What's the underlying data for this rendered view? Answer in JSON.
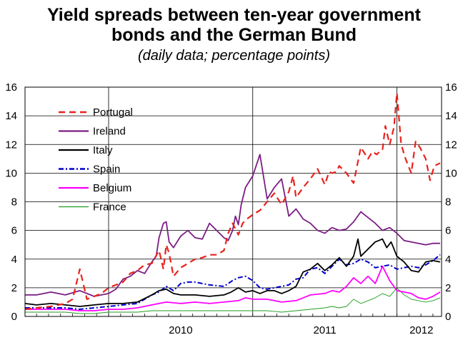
{
  "header": {
    "title_line1": "Yield spreads between ten-year government",
    "title_line2": "bonds and the German Bund",
    "subtitle": "(daily data; percentage points)"
  },
  "chart_data": {
    "type": "line",
    "title": "Yield spreads between ten-year government bonds and the German Bund",
    "subtitle": "(daily data; percentage points)",
    "xlabel": "",
    "ylabel": "",
    "x_ticks": [
      "2010",
      "2011",
      "2012"
    ],
    "xlim": [
      2009.42,
      2012.31
    ],
    "ylim": [
      0,
      16
    ],
    "y_ticks": [
      0,
      2,
      4,
      6,
      8,
      10,
      12,
      14,
      16
    ],
    "grid": "vertical lines at year boundaries 2010, 2011, 2012; horizontal lines at every 2 points",
    "legend_position": "top-left",
    "series": [
      {
        "name": "Portugal",
        "color": "#e8221c",
        "style": "dashed",
        "x": [
          2009.42,
          2009.5,
          2009.6,
          2009.7,
          2009.75,
          2009.8,
          2009.85,
          2009.9,
          2009.95,
          2010.0,
          2010.05,
          2010.1,
          2010.15,
          2010.2,
          2010.25,
          2010.3,
          2010.35,
          2010.38,
          2010.4,
          2010.42,
          2010.45,
          2010.5,
          2010.55,
          2010.6,
          2010.65,
          2010.7,
          2010.75,
          2010.8,
          2010.83,
          2010.86,
          2010.9,
          2010.93,
          2010.96,
          2011.0,
          2011.05,
          2011.1,
          2011.15,
          2011.2,
          2011.25,
          2011.28,
          2011.3,
          2011.35,
          2011.4,
          2011.45,
          2011.5,
          2011.53,
          2011.55,
          2011.58,
          2011.6,
          2011.65,
          2011.7,
          2011.75,
          2011.8,
          2011.83,
          2011.86,
          2011.88,
          2011.9,
          2011.92,
          2011.95,
          2011.98,
          2012.0,
          2012.03,
          2012.06,
          2012.1,
          2012.13,
          2012.16,
          2012.2,
          2012.23,
          2012.26,
          2012.3
        ],
        "y": [
          0.5,
          0.6,
          0.7,
          0.9,
          1.2,
          3.3,
          1.2,
          1.4,
          1.6,
          2.0,
          2.2,
          2.4,
          3.0,
          3.2,
          3.6,
          3.7,
          4.6,
          3.3,
          5.0,
          4.4,
          2.8,
          3.4,
          3.7,
          4.0,
          4.1,
          4.3,
          4.3,
          4.6,
          5.8,
          6.5,
          5.7,
          6.5,
          6.8,
          7.1,
          7.4,
          8.0,
          8.6,
          7.8,
          8.7,
          9.8,
          8.3,
          9.0,
          9.6,
          10.3,
          9.2,
          10.1,
          10.0,
          10.1,
          10.5,
          10.0,
          9.3,
          11.8,
          11.0,
          11.5,
          11.3,
          11.5,
          11.6,
          13.3,
          12.0,
          13.2,
          15.6,
          12.0,
          11.0,
          10.0,
          12.2,
          11.8,
          11.0,
          9.5,
          10.5,
          10.7
        ]
      },
      {
        "name": "Ireland",
        "color": "#7b1d84",
        "style": "solid",
        "x": [
          2009.42,
          2009.5,
          2009.6,
          2009.7,
          2009.8,
          2009.9,
          2010.0,
          2010.05,
          2010.1,
          2010.15,
          2010.2,
          2010.25,
          2010.3,
          2010.33,
          2010.35,
          2010.38,
          2010.4,
          2010.42,
          2010.45,
          2010.5,
          2010.55,
          2010.6,
          2010.65,
          2010.7,
          2010.75,
          2010.8,
          2010.83,
          2010.86,
          2010.88,
          2010.9,
          2010.92,
          2010.95,
          2011.0,
          2011.05,
          2011.1,
          2011.15,
          2011.2,
          2011.25,
          2011.3,
          2011.35,
          2011.4,
          2011.45,
          2011.5,
          2011.55,
          2011.6,
          2011.65,
          2011.7,
          2011.75,
          2011.8,
          2011.85,
          2011.9,
          2011.95,
          2012.0,
          2012.05,
          2012.1,
          2012.15,
          2012.2,
          2012.25,
          2012.3
        ],
        "y": [
          1.5,
          1.5,
          1.7,
          1.5,
          1.8,
          1.4,
          1.6,
          1.9,
          2.6,
          2.8,
          3.2,
          3.0,
          3.8,
          4.2,
          5.5,
          6.5,
          6.6,
          5.2,
          4.8,
          5.6,
          6.0,
          5.5,
          5.4,
          6.5,
          6.0,
          5.5,
          5.3,
          6.0,
          7.0,
          6.4,
          7.8,
          9.0,
          9.8,
          11.3,
          8.2,
          9.0,
          9.6,
          7.0,
          7.5,
          6.8,
          6.5,
          6.0,
          5.8,
          6.2,
          6.0,
          6.1,
          6.6,
          7.3,
          6.9,
          6.5,
          6.0,
          6.2,
          5.8,
          5.3,
          5.2,
          5.1,
          5.0,
          5.1,
          5.1
        ]
      },
      {
        "name": "Italy",
        "color": "#000000",
        "style": "solid",
        "x": [
          2009.42,
          2009.5,
          2009.6,
          2009.7,
          2009.8,
          2009.9,
          2010.0,
          2010.1,
          2010.2,
          2010.3,
          2010.35,
          2010.4,
          2010.45,
          2010.5,
          2010.6,
          2010.7,
          2010.8,
          2010.85,
          2010.9,
          2010.95,
          2011.0,
          2011.05,
          2011.1,
          2011.15,
          2011.2,
          2011.25,
          2011.3,
          2011.35,
          2011.4,
          2011.45,
          2011.5,
          2011.55,
          2011.6,
          2011.65,
          2011.7,
          2011.73,
          2011.75,
          2011.8,
          2011.85,
          2011.9,
          2011.93,
          2011.96,
          2012.0,
          2012.05,
          2012.1,
          2012.15,
          2012.2,
          2012.25,
          2012.3
        ],
        "y": [
          0.9,
          0.8,
          0.9,
          0.8,
          0.7,
          0.8,
          0.9,
          0.9,
          1.0,
          1.5,
          1.8,
          1.9,
          1.6,
          1.5,
          1.5,
          1.4,
          1.5,
          1.7,
          2.0,
          1.7,
          1.8,
          1.6,
          1.8,
          1.8,
          1.6,
          1.8,
          2.1,
          3.1,
          3.3,
          3.7,
          3.2,
          3.6,
          4.1,
          3.5,
          4.2,
          5.4,
          4.2,
          4.7,
          5.2,
          5.4,
          4.8,
          5.2,
          4.2,
          3.8,
          3.2,
          3.1,
          3.8,
          3.9,
          3.8
        ]
      },
      {
        "name": "Spain",
        "color": "#0000cc",
        "style": "dash-dot",
        "x": [
          2009.42,
          2009.5,
          2009.6,
          2009.7,
          2009.8,
          2009.9,
          2010.0,
          2010.1,
          2010.2,
          2010.25,
          2010.3,
          2010.35,
          2010.4,
          2010.45,
          2010.5,
          2010.55,
          2010.6,
          2010.7,
          2010.8,
          2010.83,
          2010.86,
          2010.9,
          2010.95,
          2011.0,
          2011.05,
          2011.1,
          2011.15,
          2011.2,
          2011.25,
          2011.3,
          2011.35,
          2011.4,
          2011.45,
          2011.5,
          2011.55,
          2011.6,
          2011.65,
          2011.7,
          2011.75,
          2011.8,
          2011.85,
          2011.9,
          2011.95,
          2012.0,
          2012.05,
          2012.1,
          2012.15,
          2012.2,
          2012.25,
          2012.3
        ],
        "y": [
          0.6,
          0.6,
          0.6,
          0.6,
          0.5,
          0.6,
          0.7,
          0.8,
          0.9,
          1.2,
          1.5,
          1.7,
          2.1,
          1.8,
          2.3,
          2.4,
          2.4,
          2.2,
          2.1,
          2.3,
          2.5,
          2.7,
          2.8,
          2.5,
          2.0,
          1.9,
          2.0,
          2.1,
          2.2,
          2.6,
          2.7,
          3.3,
          3.4,
          3.0,
          3.5,
          4.0,
          3.6,
          3.7,
          4.0,
          3.8,
          3.4,
          3.5,
          3.6,
          3.3,
          3.4,
          3.5,
          3.4,
          3.6,
          3.9,
          4.3
        ]
      },
      {
        "name": "Belgium",
        "color": "#ff00ff",
        "style": "solid",
        "x": [
          2009.42,
          2009.5,
          2009.6,
          2009.7,
          2009.8,
          2009.9,
          2010.0,
          2010.1,
          2010.2,
          2010.3,
          2010.4,
          2010.5,
          2010.6,
          2010.7,
          2010.8,
          2010.9,
          2010.95,
          2011.0,
          2011.1,
          2011.2,
          2011.3,
          2011.4,
          2011.5,
          2011.55,
          2011.6,
          2011.65,
          2011.7,
          2011.75,
          2011.8,
          2011.85,
          2011.9,
          2011.95,
          2012.0,
          2012.05,
          2012.1,
          2012.15,
          2012.2,
          2012.25,
          2012.3
        ],
        "y": [
          0.5,
          0.5,
          0.5,
          0.5,
          0.4,
          0.4,
          0.5,
          0.5,
          0.6,
          0.8,
          1.0,
          0.9,
          1.0,
          0.9,
          1.0,
          1.1,
          1.3,
          1.2,
          1.2,
          1.0,
          1.1,
          1.5,
          1.6,
          1.8,
          1.7,
          2.1,
          2.7,
          2.3,
          2.8,
          2.3,
          3.5,
          2.5,
          1.8,
          1.7,
          1.6,
          1.3,
          1.2,
          1.4,
          1.7
        ]
      },
      {
        "name": "France",
        "color": "#1f9e1f",
        "style": "thin",
        "x": [
          2009.42,
          2009.5,
          2009.6,
          2009.7,
          2009.8,
          2009.9,
          2010.0,
          2010.1,
          2010.2,
          2010.3,
          2010.4,
          2010.5,
          2010.6,
          2010.7,
          2010.8,
          2010.9,
          2011.0,
          2011.1,
          2011.2,
          2011.3,
          2011.4,
          2011.5,
          2011.55,
          2011.6,
          2011.65,
          2011.7,
          2011.75,
          2011.8,
          2011.85,
          2011.9,
          2011.95,
          2012.0,
          2012.05,
          2012.1,
          2012.15,
          2012.2,
          2012.25,
          2012.3
        ],
        "y": [
          0.3,
          0.3,
          0.3,
          0.3,
          0.2,
          0.2,
          0.3,
          0.3,
          0.3,
          0.4,
          0.4,
          0.4,
          0.4,
          0.4,
          0.4,
          0.4,
          0.4,
          0.4,
          0.3,
          0.4,
          0.5,
          0.6,
          0.7,
          0.6,
          0.7,
          1.2,
          0.9,
          1.1,
          1.3,
          1.6,
          1.4,
          2.0,
          1.5,
          1.2,
          1.1,
          1.0,
          1.1,
          1.3
        ]
      }
    ]
  }
}
